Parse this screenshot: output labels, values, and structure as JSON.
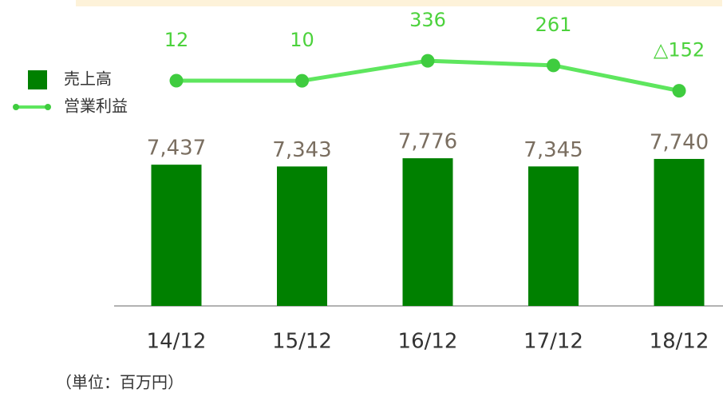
{
  "chart_data": {
    "type": "bar",
    "categories": [
      "14/12",
      "15/12",
      "16/12",
      "17/12",
      "18/12"
    ],
    "series": [
      {
        "name": "売上高",
        "type": "bar",
        "color": "#008000",
        "values": [
          7437,
          7343,
          7776,
          7345,
          7740
        ],
        "value_labels": [
          "7,437",
          "7,343",
          "7,776",
          "7,345",
          "7,740"
        ]
      },
      {
        "name": "営業利益",
        "type": "line",
        "axis": "y2",
        "color": "#5ee65e",
        "values": [
          12,
          10,
          336,
          261,
          -152
        ],
        "value_labels": [
          "12",
          "10",
          "336",
          "261",
          "△152"
        ]
      }
    ],
    "ylim": [
      0,
      9000
    ],
    "y2lim": [
      -300,
      700
    ],
    "note": "（単位：百万円）"
  }
}
